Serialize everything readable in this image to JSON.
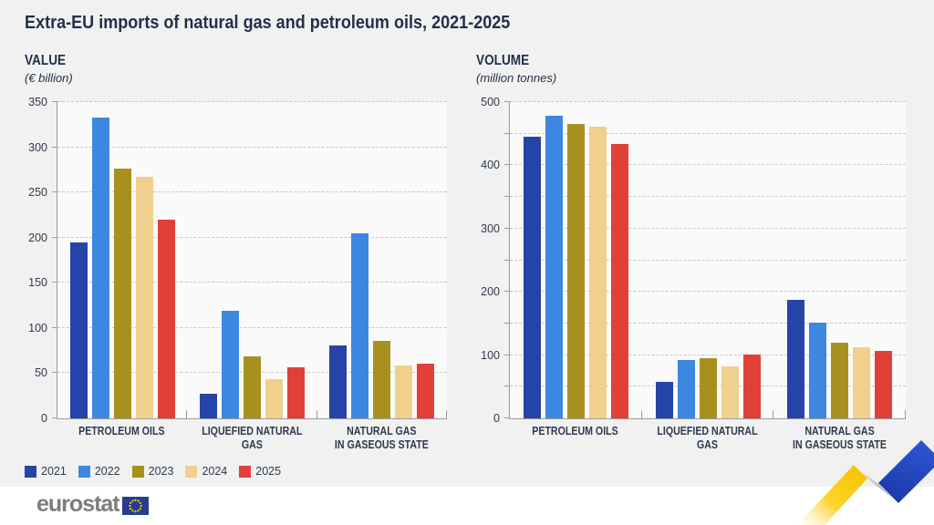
{
  "title": "Extra-EU imports of natural gas and petroleum oils, 2021-2025",
  "chart_data": [
    {
      "type": "bar",
      "title": "VALUE",
      "subtitle": "(€ billion)",
      "categories": [
        "PETROLEUM OILS",
        "LIQUEFIED NATURAL GAS",
        "NATURAL GAS\nIN GASEOUS STATE"
      ],
      "series": [
        {
          "name": "2021",
          "color": "#2644A7",
          "values": [
            195,
            27,
            81
          ]
        },
        {
          "name": "2022",
          "color": "#3D87E0",
          "values": [
            333,
            119,
            205
          ]
        },
        {
          "name": "2023",
          "color": "#A8901F",
          "values": [
            276,
            69,
            86
          ]
        },
        {
          "name": "2024",
          "color": "#F0D08C",
          "values": [
            267,
            43,
            59
          ]
        },
        {
          "name": "2025",
          "color": "#E04038",
          "values": [
            220,
            57,
            61
          ]
        }
      ],
      "ylim": [
        0,
        350
      ],
      "grid_step": 50,
      "label_step": 50,
      "grid": "dashed",
      "legend_position": "bottom-left"
    },
    {
      "type": "bar",
      "title": "VOLUME",
      "subtitle": "(million tonnes)",
      "categories": [
        "PETROLEUM OILS",
        "LIQUEFIED NATURAL GAS",
        "NATURAL GAS\nIN GASEOUS STATE"
      ],
      "series": [
        {
          "name": "2021",
          "color": "#2644A7",
          "values": [
            445,
            57,
            187
          ]
        },
        {
          "name": "2022",
          "color": "#3D87E0",
          "values": [
            478,
            92,
            151
          ]
        },
        {
          "name": "2023",
          "color": "#A8901F",
          "values": [
            466,
            95,
            119
          ]
        },
        {
          "name": "2024",
          "color": "#F0D08C",
          "values": [
            461,
            82,
            112
          ]
        },
        {
          "name": "2025",
          "color": "#E04038",
          "values": [
            434,
            101,
            106
          ]
        }
      ],
      "ylim": [
        0,
        500
      ],
      "grid_step": 50,
      "label_step": 100,
      "grid": "dashed",
      "legend_position": "bottom-left"
    }
  ],
  "legend": {
    "items": [
      {
        "label": "2021",
        "color": "#2644A7"
      },
      {
        "label": "2022",
        "color": "#3D87E0"
      },
      {
        "label": "2023",
        "color": "#A8901F"
      },
      {
        "label": "2024",
        "color": "#F0D08C"
      },
      {
        "label": "2025",
        "color": "#E04038"
      }
    ]
  },
  "footer": {
    "logo_text": "eurostat"
  },
  "colors": {
    "page_background": "#F1F1F1",
    "plot_background": "#FAFAFA",
    "axis": "#9B9B9B",
    "gridline": "#C8C8C8",
    "text_dark": "#233047",
    "ribbon_yellow": "#FFCC00",
    "ribbon_blue": "#2347C5",
    "logo_gray": "#7C7C7C",
    "eu_flag_blue": "#243D8F",
    "eu_star_yellow": "#F7C600"
  }
}
